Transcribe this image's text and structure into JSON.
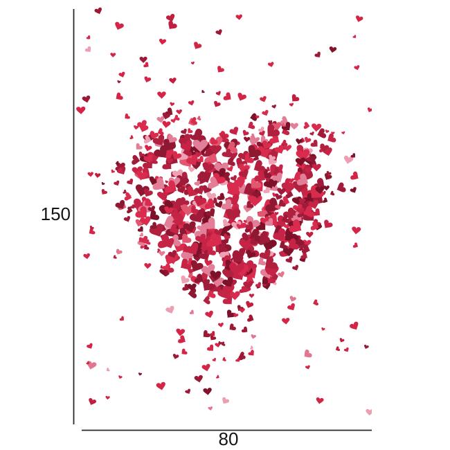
{
  "page": {
    "background": "#ffffff",
    "description": "Product dimension drawing: rectangular panel decorated with confetti hearts forming a large heart, annotated with height and width measurements"
  },
  "dimension_labels": {
    "height": "150",
    "width": "80"
  },
  "dimension_style": {
    "line_color": "#2a272b",
    "label_color": "#161314"
  },
  "artwork": {
    "background": "#ffffff",
    "seed": 12,
    "counts": {
      "scatter": 155,
      "fringe": 115,
      "fill": 420,
      "trail": 18
    },
    "palette_fill": [
      {
        "color": "#7c1129",
        "w": 2
      },
      {
        "color": "#8e1732",
        "w": 3
      },
      {
        "color": "#a01b39",
        "w": 3
      },
      {
        "color": "#b22040",
        "w": 3
      },
      {
        "color": "#c62446",
        "w": 4
      },
      {
        "color": "#d92b4d",
        "w": 4
      },
      {
        "color": "#e2566f",
        "w": 1
      },
      {
        "color": "#e27e97",
        "w": 2
      },
      {
        "color": "#eda2b5",
        "w": 1
      }
    ],
    "palette_scatter": [
      {
        "color": "#d42547",
        "w": 8
      },
      {
        "color": "#c21f40",
        "w": 3
      },
      {
        "color": "#9d1834",
        "w": 2
      },
      {
        "color": "#801229",
        "w": 1
      },
      {
        "color": "#e2758f",
        "w": 1
      },
      {
        "color": "#ec9fb3",
        "w": 1
      }
    ]
  }
}
